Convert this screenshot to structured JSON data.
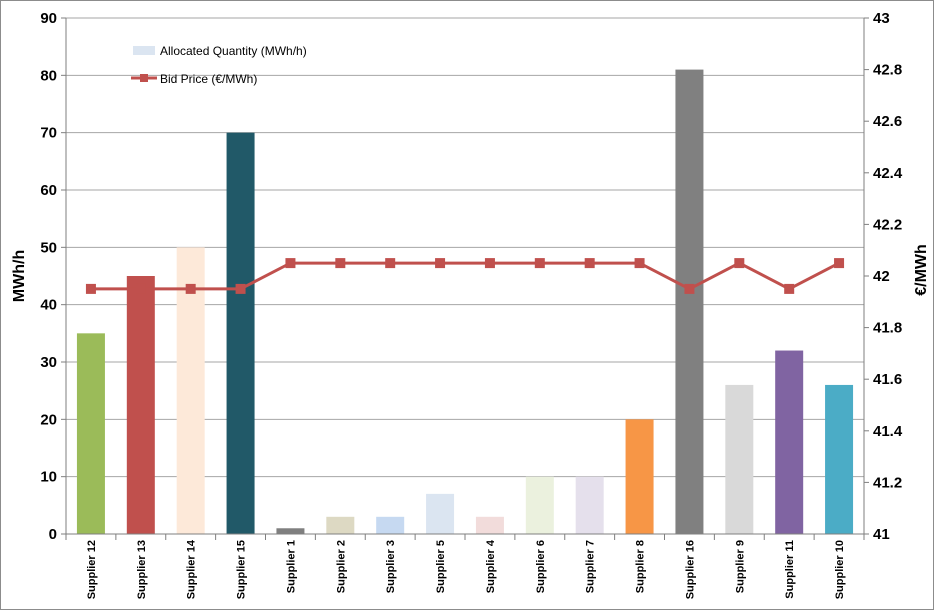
{
  "chart_data": {
    "type": "bar",
    "categories": [
      "Supplier 12",
      "Supplier 13",
      "Supplier 14",
      "Supplier 15",
      "Supplier 1",
      "Supplier 2",
      "Supplier 3",
      "Supplier 5",
      "Supplier 4",
      "Supplier 6",
      "Supplier 7",
      "Supplier 8",
      "Supplier 16",
      "Supplier 9",
      "Supplier 11",
      "Supplier 10"
    ],
    "series": [
      {
        "name": "Allocated Quantity (MWh/h)",
        "type": "bar",
        "axis": "left",
        "values": [
          35,
          45,
          50,
          70,
          1,
          3,
          3,
          7,
          3,
          10,
          10,
          20,
          81,
          26,
          32,
          26
        ],
        "colors": [
          "#9bbb59",
          "#c0504d",
          "#fde9d9",
          "#215968",
          "#7f7f7f",
          "#ddd9c3",
          "#c6d9f1",
          "#dbe5f1",
          "#f2dcdb",
          "#ebf1de",
          "#e5e0ec",
          "#f79646",
          "#808080",
          "#d9d9d9",
          "#8064a2",
          "#4bacc6"
        ]
      },
      {
        "name": "Bid Price (€/MWh)",
        "type": "line",
        "axis": "right",
        "color": "#c0504d",
        "values": [
          41.95,
          41.95,
          41.95,
          41.95,
          42.05,
          42.05,
          42.05,
          42.05,
          42.05,
          42.05,
          42.05,
          42.05,
          41.95,
          42.05,
          41.95,
          42.05
        ]
      }
    ],
    "ylabel": "MWh/h",
    "y2label": "€/MWh",
    "ylim": [
      0,
      90
    ],
    "yticks": [
      "0",
      "10",
      "20",
      "30",
      "40",
      "50",
      "60",
      "70",
      "80",
      "90"
    ],
    "y2lim": [
      41,
      43
    ],
    "y2ticks": [
      "41",
      "41.2",
      "41.4",
      "41.6",
      "41.8",
      "42",
      "42.2",
      "42.4",
      "42.6",
      "42.8",
      "43"
    ],
    "grid": true,
    "legend": "top-left"
  }
}
